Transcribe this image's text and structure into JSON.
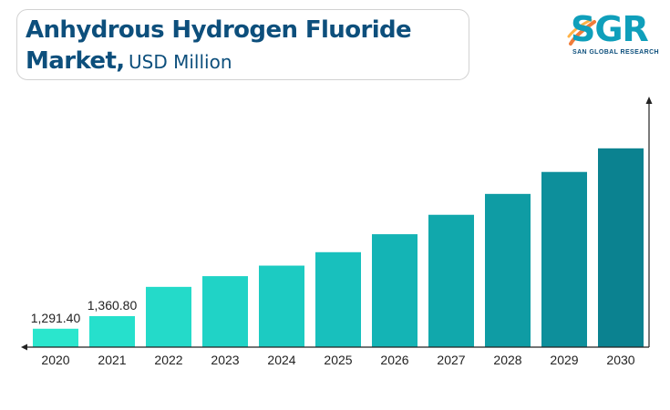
{
  "title": {
    "line1": "Anhydrous Hydrogen Fluoride",
    "line2_bold": "Market,",
    "line2_unit": "USD Million"
  },
  "logo": {
    "mark": "SGR",
    "subtitle": "SAN GLOBAL RESEARCH",
    "icon": "swoosh-icon"
  },
  "chart_data": {
    "type": "bar",
    "categories": [
      "2020",
      "2021",
      "2022",
      "2023",
      "2024",
      "2025",
      "2026",
      "2027",
      "2028",
      "2029",
      "2030"
    ],
    "values": [
      1291.4,
      1360.8,
      1522,
      1581,
      1639,
      1713,
      1812,
      1919,
      2034,
      2155,
      2285
    ],
    "data_labels": [
      "1,291.40",
      "1,360.80",
      "",
      "",
      "",
      "",
      "",
      "",
      "",
      "",
      ""
    ],
    "ylim": [
      1190,
      2530
    ],
    "grid": false,
    "legend": "none",
    "colors": [
      "#2ae6cd",
      "#26e0cc",
      "#24dac9",
      "#20d3c6",
      "#1ccbc2",
      "#18c0bd",
      "#14b4b5",
      "#11a8ac",
      "#0f9ca4",
      "#0d8f9b",
      "#0b8290"
    ]
  }
}
